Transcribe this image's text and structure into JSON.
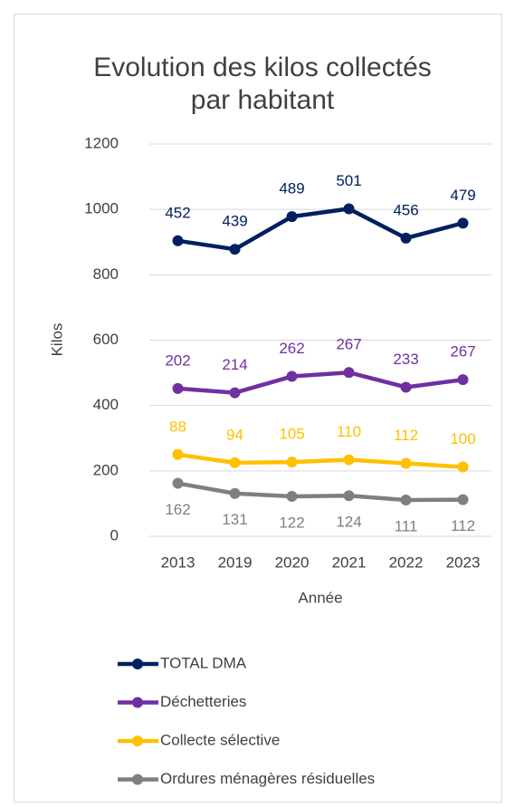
{
  "chart_data": {
    "type": "line",
    "stacked": true,
    "title": "Evolution des kilos collectés par habitant",
    "x_label": "Année",
    "y_label": "Kilos",
    "categories": [
      "2013",
      "2019",
      "2020",
      "2021",
      "2022",
      "2023"
    ],
    "series": [
      {
        "name": "TOTAL DMA",
        "color": "#002060",
        "values": [
          452,
          439,
          489,
          501,
          456,
          479
        ]
      },
      {
        "name": "Déchetteries",
        "color": "#7030a0",
        "values": [
          202,
          214,
          262,
          267,
          233,
          267
        ]
      },
      {
        "name": "Collecte sélective",
        "color": "#ffc000",
        "values": [
          88,
          94,
          105,
          110,
          112,
          100
        ]
      },
      {
        "name": "Ordures ménagères résiduelles",
        "color": "#7f7f7f",
        "values": [
          162,
          131,
          122,
          124,
          111,
          112
        ]
      }
    ],
    "ylim": [
      0,
      1200
    ],
    "yticks": [
      0,
      200,
      400,
      600,
      800,
      1000,
      1200
    ],
    "grid": true,
    "legend": "bottom"
  }
}
